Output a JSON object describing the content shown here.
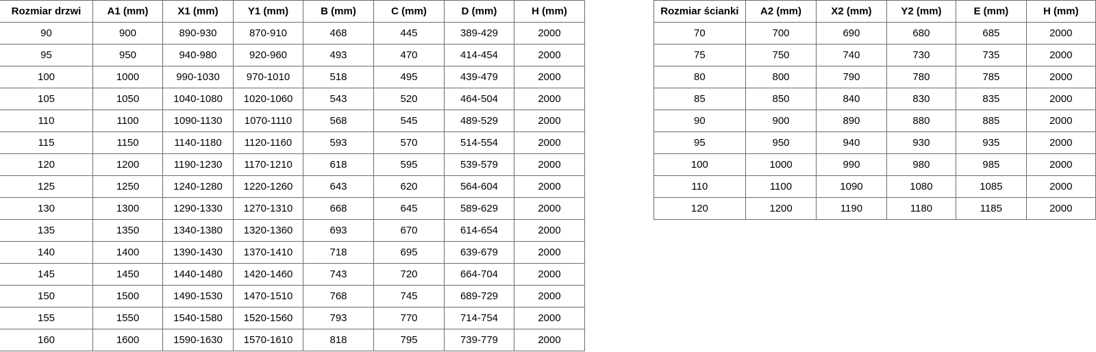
{
  "door_table": {
    "headers": [
      "Rozmiar drzwi",
      "A1 (mm)",
      "X1 (mm)",
      "Y1 (mm)",
      "B (mm)",
      "C (mm)",
      "D (mm)",
      "H (mm)"
    ],
    "rows": [
      [
        "90",
        "900",
        "890-930",
        "870-910",
        "468",
        "445",
        "389-429",
        "2000"
      ],
      [
        "95",
        "950",
        "940-980",
        "920-960",
        "493",
        "470",
        "414-454",
        "2000"
      ],
      [
        "100",
        "1000",
        "990-1030",
        "970-1010",
        "518",
        "495",
        "439-479",
        "2000"
      ],
      [
        "105",
        "1050",
        "1040-1080",
        "1020-1060",
        "543",
        "520",
        "464-504",
        "2000"
      ],
      [
        "110",
        "1100",
        "1090-1130",
        "1070-1110",
        "568",
        "545",
        "489-529",
        "2000"
      ],
      [
        "115",
        "1150",
        "1140-1180",
        "1120-1160",
        "593",
        "570",
        "514-554",
        "2000"
      ],
      [
        "120",
        "1200",
        "1190-1230",
        "1170-1210",
        "618",
        "595",
        "539-579",
        "2000"
      ],
      [
        "125",
        "1250",
        "1240-1280",
        "1220-1260",
        "643",
        "620",
        "564-604",
        "2000"
      ],
      [
        "130",
        "1300",
        "1290-1330",
        "1270-1310",
        "668",
        "645",
        "589-629",
        "2000"
      ],
      [
        "135",
        "1350",
        "1340-1380",
        "1320-1360",
        "693",
        "670",
        "614-654",
        "2000"
      ],
      [
        "140",
        "1400",
        "1390-1430",
        "1370-1410",
        "718",
        "695",
        "639-679",
        "2000"
      ],
      [
        "145",
        "1450",
        "1440-1480",
        "1420-1460",
        "743",
        "720",
        "664-704",
        "2000"
      ],
      [
        "150",
        "1500",
        "1490-1530",
        "1470-1510",
        "768",
        "745",
        "689-729",
        "2000"
      ],
      [
        "155",
        "1550",
        "1540-1580",
        "1520-1560",
        "793",
        "770",
        "714-754",
        "2000"
      ],
      [
        "160",
        "1600",
        "1590-1630",
        "1570-1610",
        "818",
        "795",
        "739-779",
        "2000"
      ]
    ]
  },
  "wall_table": {
    "headers": [
      "Rozmiar ścianki",
      "A2 (mm)",
      "X2 (mm)",
      "Y2 (mm)",
      "E (mm)",
      "H (mm)"
    ],
    "rows": [
      [
        "70",
        "700",
        "690",
        "680",
        "685",
        "2000"
      ],
      [
        "75",
        "750",
        "740",
        "730",
        "735",
        "2000"
      ],
      [
        "80",
        "800",
        "790",
        "780",
        "785",
        "2000"
      ],
      [
        "85",
        "850",
        "840",
        "830",
        "835",
        "2000"
      ],
      [
        "90",
        "900",
        "890",
        "880",
        "885",
        "2000"
      ],
      [
        "95",
        "950",
        "940",
        "930",
        "935",
        "2000"
      ],
      [
        "100",
        "1000",
        "990",
        "980",
        "985",
        "2000"
      ],
      [
        "110",
        "1100",
        "1090",
        "1080",
        "1085",
        "2000"
      ],
      [
        "120",
        "1200",
        "1190",
        "1180",
        "1185",
        "2000"
      ]
    ]
  }
}
